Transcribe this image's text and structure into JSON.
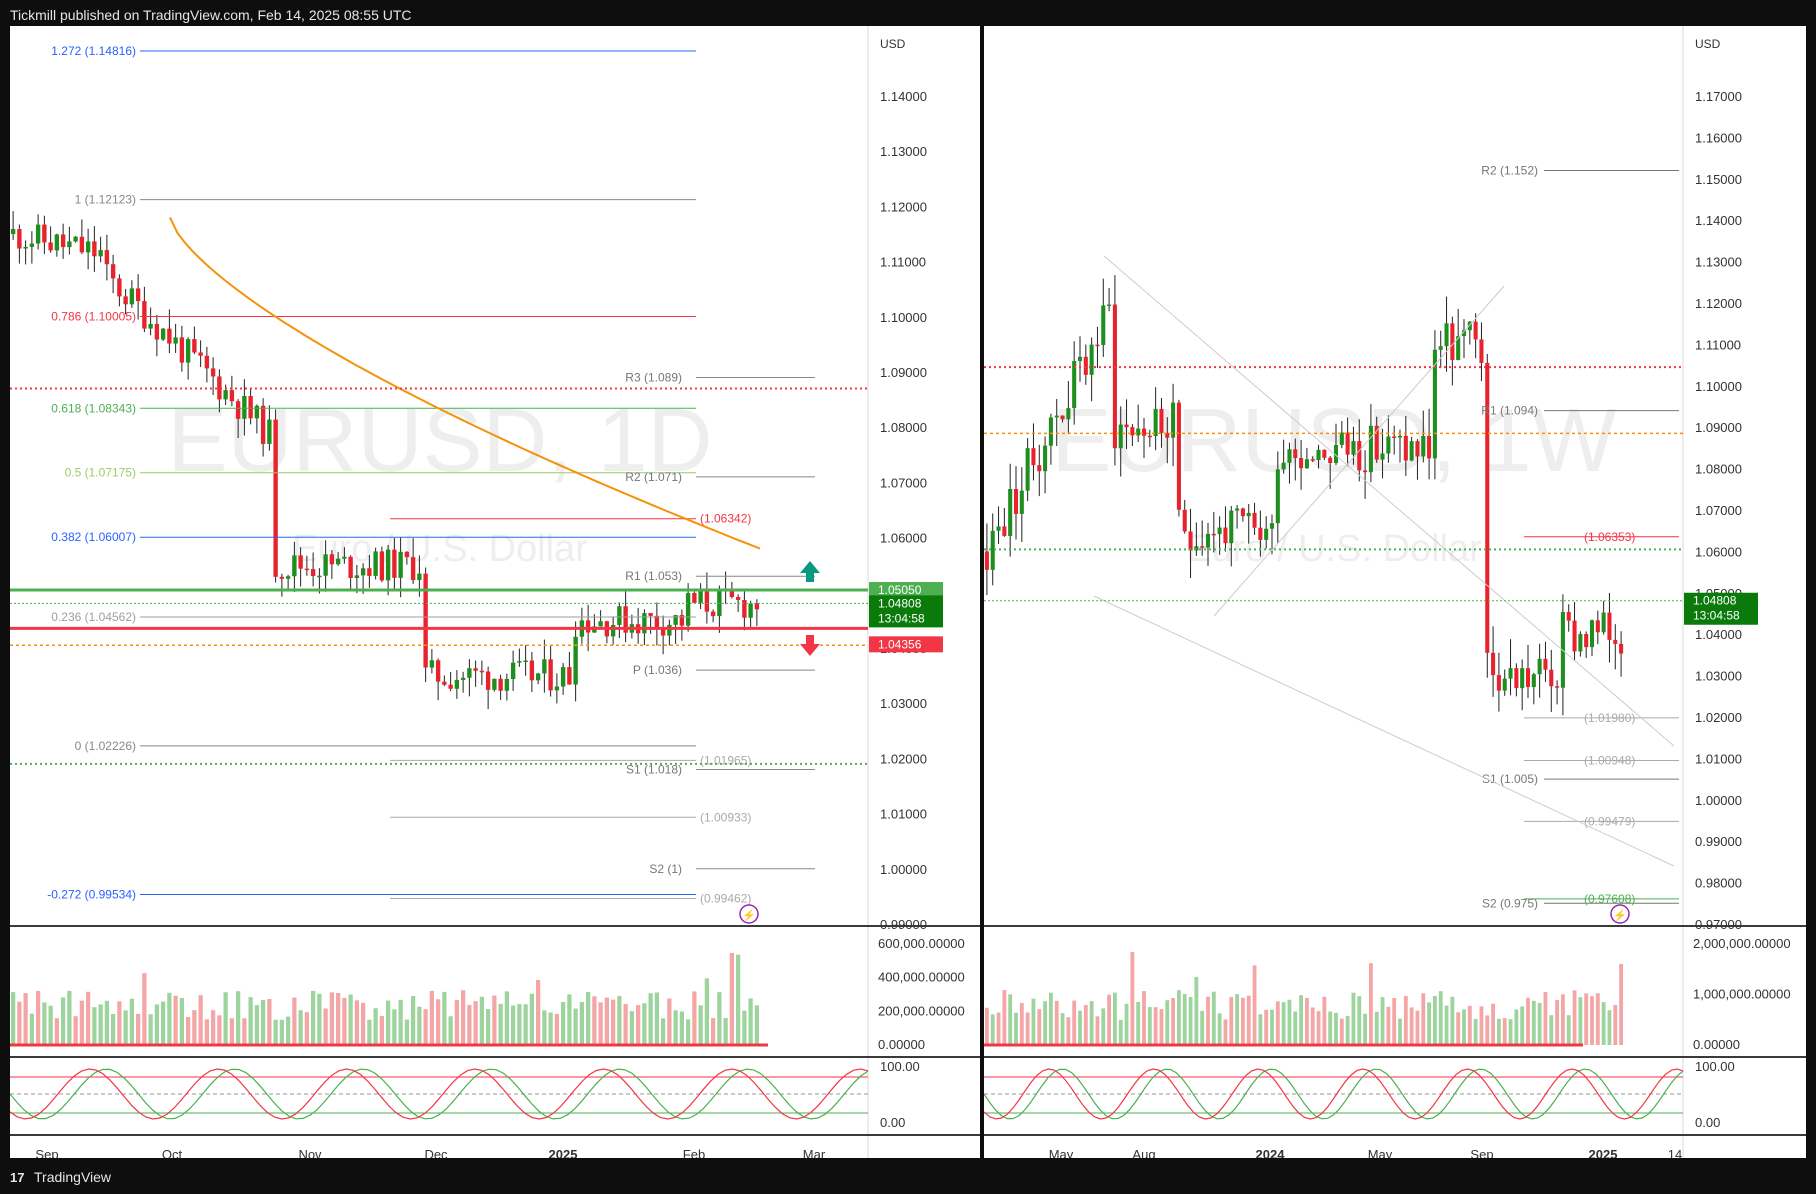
{
  "header": {
    "publish_line": "Tickmill published on TradingView.com, Feb 14, 2025 08:55 UTC"
  },
  "footer": {
    "brand": "TradingView"
  },
  "colors": {
    "up": "#089981",
    "down": "#f23645",
    "vol_up": "#9dd39d",
    "vol_down": "#f4a5a5",
    "fib_blue": "#2962ff",
    "ma": "#f5910a",
    "green_line": "#4caf50",
    "red_line": "#f23645"
  },
  "left": {
    "watermark_symbol": "EURUSD, 1D",
    "watermark_name": "Euro / U.S. Dollar",
    "currency": "USD",
    "price_axis": [
      "1.14000",
      "1.13000",
      "1.12000",
      "1.11000",
      "1.10000",
      "1.09000",
      "1.08000",
      "1.07000",
      "1.06000",
      "1.05000",
      "1.04000",
      "1.03000",
      "1.02000",
      "1.01000",
      "1.00000",
      "0.99000"
    ],
    "price_tags": {
      "resistance": "1.05050",
      "last": "1.04808",
      "countdown": "13:04:58",
      "support": "1.04356"
    },
    "fib_labels": [
      "1.272 (1.14816)",
      "1 (1.12123)",
      "0.786 (1.10005)",
      "0.618 (1.08343)",
      "0.5 (1.07175)",
      "0.382 (1.06007)",
      "0.236 (1.04562)",
      "0 (1.02226)",
      "-0.272 (0.99534)"
    ],
    "pivot_labels": [
      "R3 (1.089)",
      "R2 (1.071)",
      "R1 (1.053)",
      "P (1.036)",
      "S1 (1.018)",
      "S2 (1)"
    ],
    "level_labels": [
      "(1.06342)",
      "(1.01965)",
      "(1.00933)",
      "(0.99462)"
    ],
    "volume_axis": [
      "600,000.00000",
      "400,000.00000",
      "200,000.00000",
      "0.00000"
    ],
    "osc_axis": [
      "100.00",
      "0.00"
    ],
    "time_axis": [
      "Sep",
      "Oct",
      "Nov",
      "Dec",
      "2025",
      "Feb",
      "Mar"
    ]
  },
  "right": {
    "watermark_symbol": "EURUSD, 1W",
    "watermark_name": "Euro / U.S. Dollar",
    "currency": "USD",
    "price_axis": [
      "1.17000",
      "1.16000",
      "1.15000",
      "1.14000",
      "1.13000",
      "1.12000",
      "1.11000",
      "1.10000",
      "1.09000",
      "1.08000",
      "1.07000",
      "1.06000",
      "1.05000",
      "1.04000",
      "1.03000",
      "1.02000",
      "1.01000",
      "1.00000",
      "0.99000",
      "0.98000",
      "0.97000"
    ],
    "price_tags": {
      "last": "1.04808",
      "countdown": "13:04:58"
    },
    "pivot_labels": [
      "R2 (1.152)",
      "R1 (1.094)",
      "S1 (1.005)",
      "S2 (0.975)"
    ],
    "level_labels": [
      "(1.06353)",
      "(1.01980)",
      "(1.00948)",
      "(0.99479)",
      "(0.97608)"
    ],
    "volume_axis": [
      "2,000,000.00000",
      "1,000,000.00000",
      "0.00000"
    ],
    "osc_axis": [
      "100.00",
      "0.00"
    ],
    "time_axis": [
      "May",
      "Aug",
      "2024",
      "May",
      "Sep",
      "2025",
      "14"
    ]
  }
}
